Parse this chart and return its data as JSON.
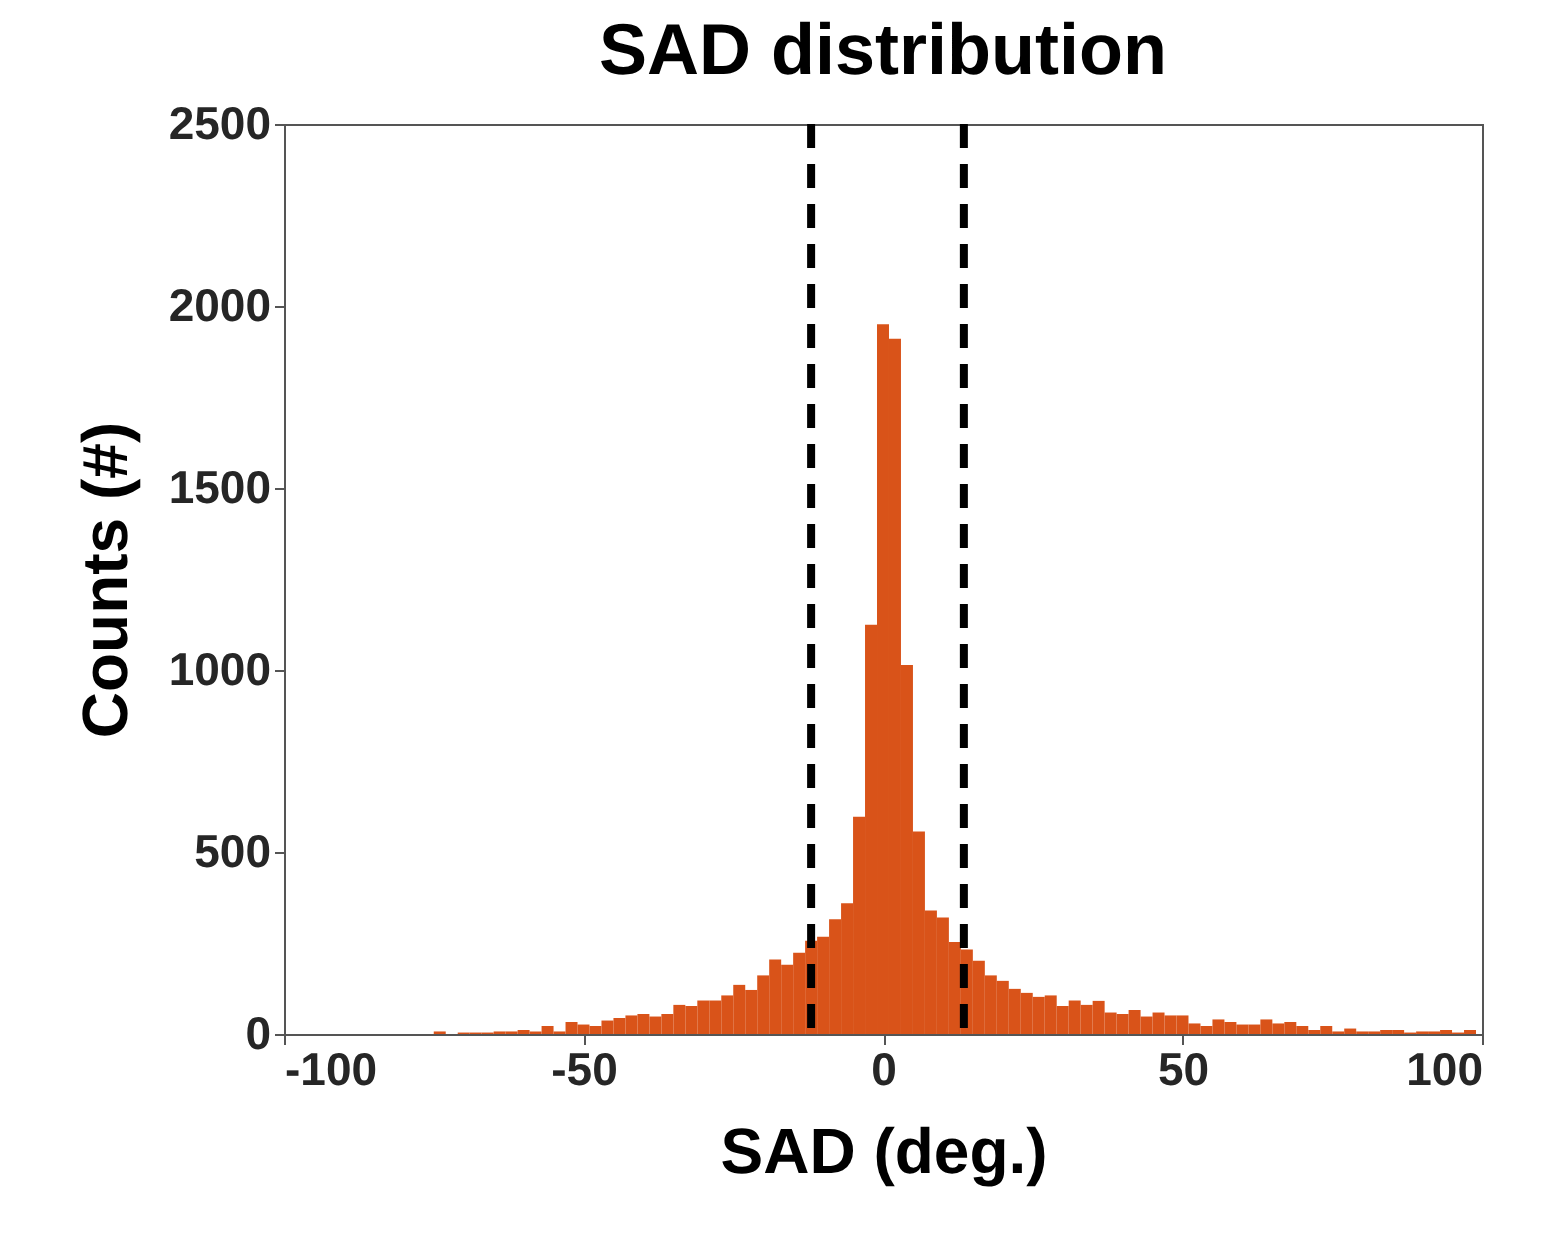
{
  "chart_data": {
    "type": "histogram",
    "title": "SAD distribution",
    "xlabel": "SAD (deg.)",
    "ylabel": "Counts (#)",
    "bins": [
      -75,
      -73,
      -71,
      -69,
      -67,
      -65,
      -63,
      -61,
      -59,
      -57,
      -55,
      -53,
      -51,
      -49,
      -47,
      -45,
      -43,
      -41,
      -39,
      -37,
      -35,
      -33,
      -31,
      -29,
      -27,
      -25,
      -23,
      -21,
      -19,
      -17,
      -15,
      -13,
      -11,
      -9,
      -7,
      -5,
      -3,
      -1,
      1,
      3,
      5,
      7,
      9,
      11,
      13,
      15,
      17,
      19,
      21,
      23,
      25,
      27,
      29,
      31,
      33,
      35,
      37,
      39,
      41,
      43,
      45,
      47,
      49,
      51,
      53,
      55,
      57,
      59,
      61,
      63,
      65,
      67,
      69,
      71,
      73,
      75,
      77,
      79,
      81,
      83,
      85,
      87,
      89,
      91,
      93,
      95,
      97,
      99
    ],
    "values": [
      7,
      0,
      4,
      4,
      4,
      7,
      7,
      11,
      7,
      22,
      7,
      33,
      26,
      22,
      37,
      44,
      51,
      55,
      48,
      55,
      80,
      77,
      92,
      92,
      106,
      135,
      121,
      161,
      205,
      190,
      223,
      256,
      267,
      315,
      359,
      597,
      1124,
      1950,
      1910,
      1014,
      556,
      339,
      320,
      253,
      232,
      201,
      161,
      146,
      124,
      113,
      102,
      106,
      77,
      92,
      80,
      91,
      59,
      55,
      66,
      48,
      59,
      51,
      51,
      29,
      22,
      40,
      33,
      26,
      26,
      40,
      29,
      33,
      22,
      11,
      22,
      7,
      15,
      7,
      7,
      11,
      11,
      4,
      7,
      7,
      11,
      4,
      11
    ],
    "color": "#d95319",
    "xlim": [
      -100,
      100
    ],
    "xticks": [
      -100,
      -50,
      0,
      50,
      100
    ],
    "ylim": [
      0,
      2500
    ],
    "yticks": [
      0,
      500,
      1000,
      1500,
      2000,
      2500
    ],
    "grid": false,
    "ref_lines": [
      {
        "axis": "x",
        "value": -12,
        "color": "#000000",
        "line_style": "dashed"
      },
      {
        "axis": "x",
        "value": 13.5,
        "color": "#000000",
        "line_style": "dashed"
      }
    ]
  }
}
